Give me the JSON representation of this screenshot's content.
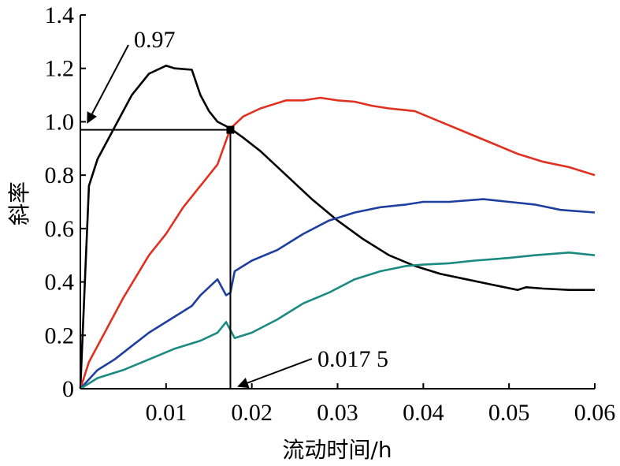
{
  "chart_data": {
    "type": "line",
    "title": "",
    "xlabel": "流动时间/h",
    "ylabel": "斜率",
    "xlim": [
      0,
      0.06
    ],
    "ylim": [
      0,
      1.4
    ],
    "grid": false,
    "legend": "none",
    "x_ticks": [
      "0.01",
      "0.02",
      "0.03",
      "0.04",
      "0.05",
      "0.06"
    ],
    "y_ticks": [
      "0",
      "0.2",
      "0.4",
      "0.6",
      "0.8",
      "1.0",
      "1.2",
      "1.4"
    ],
    "x_tick_values": [
      0.01,
      0.02,
      0.03,
      0.04,
      0.05,
      0.06
    ],
    "y_tick_values": [
      0,
      0.2,
      0.4,
      0.6,
      0.8,
      1.0,
      1.2,
      1.4
    ],
    "series": [
      {
        "color": "#000000",
        "points": [
          [
            0,
            0
          ],
          [
            0.001,
            0.76
          ],
          [
            0.002,
            0.86
          ],
          [
            0.004,
            0.98
          ],
          [
            0.006,
            1.1
          ],
          [
            0.008,
            1.18
          ],
          [
            0.01,
            1.21
          ],
          [
            0.011,
            1.2
          ],
          [
            0.013,
            1.195
          ],
          [
            0.014,
            1.1
          ],
          [
            0.015,
            1.04
          ],
          [
            0.016,
            1.0
          ],
          [
            0.0175,
            0.975
          ],
          [
            0.019,
            0.94
          ],
          [
            0.021,
            0.89
          ],
          [
            0.024,
            0.8
          ],
          [
            0.027,
            0.71
          ],
          [
            0.03,
            0.63
          ],
          [
            0.033,
            0.56
          ],
          [
            0.036,
            0.5
          ],
          [
            0.039,
            0.46
          ],
          [
            0.042,
            0.43
          ],
          [
            0.045,
            0.41
          ],
          [
            0.048,
            0.39
          ],
          [
            0.051,
            0.37
          ],
          [
            0.052,
            0.38
          ],
          [
            0.054,
            0.375
          ],
          [
            0.057,
            0.37
          ],
          [
            0.06,
            0.37
          ]
        ]
      },
      {
        "color": "#e03020",
        "points": [
          [
            0,
            0
          ],
          [
            0.001,
            0.1
          ],
          [
            0.003,
            0.22
          ],
          [
            0.005,
            0.34
          ],
          [
            0.008,
            0.5
          ],
          [
            0.01,
            0.58
          ],
          [
            0.012,
            0.68
          ],
          [
            0.014,
            0.76
          ],
          [
            0.016,
            0.84
          ],
          [
            0.0175,
            0.975
          ],
          [
            0.019,
            1.02
          ],
          [
            0.021,
            1.05
          ],
          [
            0.024,
            1.08
          ],
          [
            0.026,
            1.08
          ],
          [
            0.028,
            1.09
          ],
          [
            0.03,
            1.08
          ],
          [
            0.032,
            1.075
          ],
          [
            0.034,
            1.06
          ],
          [
            0.036,
            1.05
          ],
          [
            0.039,
            1.04
          ],
          [
            0.042,
            1.0
          ],
          [
            0.045,
            0.96
          ],
          [
            0.048,
            0.92
          ],
          [
            0.051,
            0.88
          ],
          [
            0.054,
            0.85
          ],
          [
            0.057,
            0.83
          ],
          [
            0.06,
            0.8
          ]
        ]
      },
      {
        "color": "#1f3fa0",
        "points": [
          [
            0,
            0
          ],
          [
            0.002,
            0.07
          ],
          [
            0.004,
            0.11
          ],
          [
            0.006,
            0.16
          ],
          [
            0.008,
            0.21
          ],
          [
            0.01,
            0.25
          ],
          [
            0.013,
            0.31
          ],
          [
            0.014,
            0.35
          ],
          [
            0.016,
            0.41
          ],
          [
            0.017,
            0.35
          ],
          [
            0.0175,
            0.36
          ],
          [
            0.018,
            0.44
          ],
          [
            0.02,
            0.48
          ],
          [
            0.023,
            0.52
          ],
          [
            0.026,
            0.58
          ],
          [
            0.029,
            0.63
          ],
          [
            0.032,
            0.66
          ],
          [
            0.035,
            0.68
          ],
          [
            0.038,
            0.69
          ],
          [
            0.04,
            0.7
          ],
          [
            0.043,
            0.7
          ],
          [
            0.047,
            0.71
          ],
          [
            0.05,
            0.7
          ],
          [
            0.053,
            0.69
          ],
          [
            0.056,
            0.67
          ],
          [
            0.06,
            0.66
          ]
        ]
      },
      {
        "color": "#1b8a80",
        "points": [
          [
            0,
            0
          ],
          [
            0.002,
            0.04
          ],
          [
            0.005,
            0.07
          ],
          [
            0.008,
            0.11
          ],
          [
            0.011,
            0.15
          ],
          [
            0.014,
            0.18
          ],
          [
            0.016,
            0.21
          ],
          [
            0.017,
            0.25
          ],
          [
            0.018,
            0.19
          ],
          [
            0.02,
            0.21
          ],
          [
            0.023,
            0.26
          ],
          [
            0.026,
            0.32
          ],
          [
            0.029,
            0.36
          ],
          [
            0.032,
            0.41
          ],
          [
            0.035,
            0.44
          ],
          [
            0.038,
            0.46
          ],
          [
            0.04,
            0.465
          ],
          [
            0.043,
            0.47
          ],
          [
            0.046,
            0.48
          ],
          [
            0.05,
            0.49
          ],
          [
            0.053,
            0.5
          ],
          [
            0.057,
            0.51
          ],
          [
            0.06,
            0.5
          ]
        ]
      }
    ],
    "markers": [
      [
        0.0175,
        0.97
      ]
    ],
    "reference_lines": {
      "horizontal": {
        "y": 0.97,
        "x_from": 0,
        "x_to": 0.0175
      },
      "vertical": {
        "x": 0.0175,
        "y_from": 0,
        "y_to": 0.97
      }
    },
    "annotations": [
      {
        "text": "0.97",
        "arrow_to": [
          0,
          0.97
        ],
        "placement": "upper-left"
      },
      {
        "text": "0.017 5",
        "arrow_to": [
          0.0175,
          0
        ],
        "placement": "lower-middle"
      }
    ]
  }
}
